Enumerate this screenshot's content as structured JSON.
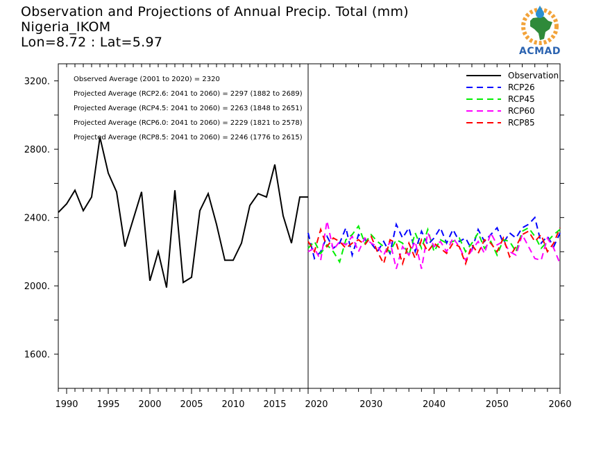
{
  "header": {
    "title": "Observation and Projections of Annual Precip. Total (mm)",
    "location": "Nigeria_IKOM",
    "coords": "Lon=8.72 : Lat=5.97"
  },
  "logo": {
    "text": "ACMAD"
  },
  "chart_data": {
    "type": "line",
    "ylim": [
      1400,
      3300
    ],
    "y_ticks": [
      1600,
      2000,
      2400,
      2800,
      3200
    ],
    "y_tick_labels": [
      "1600.",
      "2000.",
      "2400.",
      "2800.",
      "3200."
    ],
    "x_ticks_left": [
      1990,
      1995,
      2000,
      2005,
      2010,
      2015,
      2020
    ],
    "x_ticks_right": [
      2020,
      2030,
      2040,
      2050,
      2060
    ],
    "annotations": [
      "Observed Average (2001 to 2020) = 2320",
      "Projected Average (RCP2.6: 2041 to 2060) = 2297 (1882 to 2689)",
      "Projected Average (RCP4.5: 2041 to 2060) = 2263 (1848 to 2651)",
      "Projected Average (RCP6.0: 2041 to 2060) = 2229 (1821 to 2578)",
      "Projected Average (RCP8.5: 2041 to 2060) = 2246 (1776 to 2615)"
    ],
    "legend_position": "top-right",
    "observation": {
      "name": "Observation",
      "color": "#000000",
      "x": [
        1989,
        1990,
        1991,
        1992,
        1993,
        1994,
        1995,
        1996,
        1997,
        1998,
        1999,
        2000,
        2001,
        2002,
        2003,
        2004,
        2005,
        2006,
        2007,
        2008,
        2009,
        2010,
        2011,
        2012,
        2013,
        2014,
        2015,
        2016,
        2017,
        2018,
        2019
      ],
      "values": [
        2430,
        2480,
        2560,
        2440,
        2520,
        2870,
        2660,
        2550,
        2230,
        2390,
        2550,
        2030,
        2200,
        1990,
        2560,
        2020,
        2050,
        2440,
        2540,
        2360,
        2150,
        2150,
        2250,
        2470,
        2540,
        2520,
        2710,
        2410,
        2250,
        2520,
        2520
      ]
    },
    "projections": [
      {
        "name": "RCP26",
        "color": "#0000ff",
        "x": [
          2020,
          2021,
          2022,
          2023,
          2024,
          2025,
          2026,
          2027,
          2028,
          2029,
          2030,
          2031,
          2032,
          2033,
          2034,
          2035,
          2036,
          2037,
          2038,
          2039,
          2040,
          2041,
          2042,
          2043,
          2044,
          2045,
          2046,
          2047,
          2048,
          2049,
          2050,
          2051,
          2052,
          2053,
          2054,
          2055,
          2056,
          2057,
          2058,
          2059,
          2060
        ],
        "values": [
          2310,
          2160,
          2200,
          2290,
          2220,
          2250,
          2340,
          2180,
          2300,
          2270,
          2250,
          2200,
          2260,
          2190,
          2360,
          2280,
          2340,
          2200,
          2320,
          2240,
          2280,
          2340,
          2250,
          2330,
          2260,
          2280,
          2210,
          2330,
          2260,
          2300,
          2340,
          2250,
          2310,
          2280,
          2340,
          2360,
          2400,
          2250,
          2290,
          2230,
          2310
        ]
      },
      {
        "name": "RCP45",
        "color": "#00ee00",
        "x": [
          2020,
          2021,
          2022,
          2023,
          2024,
          2025,
          2026,
          2027,
          2028,
          2029,
          2030,
          2031,
          2032,
          2033,
          2034,
          2035,
          2036,
          2037,
          2038,
          2039,
          2040,
          2041,
          2042,
          2043,
          2044,
          2045,
          2046,
          2047,
          2048,
          2049,
          2050,
          2051,
          2052,
          2053,
          2054,
          2055,
          2056,
          2057,
          2058,
          2059,
          2060
        ],
        "values": [
          2220,
          2260,
          2190,
          2240,
          2200,
          2140,
          2270,
          2300,
          2350,
          2250,
          2300,
          2260,
          2230,
          2200,
          2270,
          2250,
          2180,
          2310,
          2220,
          2330,
          2200,
          2270,
          2250,
          2260,
          2280,
          2200,
          2250,
          2310,
          2220,
          2260,
          2180,
          2270,
          2260,
          2200,
          2320,
          2340,
          2290,
          2220,
          2260,
          2300,
          2330
        ]
      },
      {
        "name": "RCP60",
        "color": "#ff00ff",
        "x": [
          2020,
          2021,
          2022,
          2023,
          2024,
          2025,
          2026,
          2027,
          2028,
          2029,
          2030,
          2031,
          2032,
          2033,
          2034,
          2035,
          2036,
          2037,
          2038,
          2039,
          2040,
          2041,
          2042,
          2043,
          2044,
          2045,
          2046,
          2047,
          2048,
          2049,
          2050,
          2051,
          2052,
          2053,
          2054,
          2055,
          2056,
          2057,
          2058,
          2059,
          2060
        ],
        "values": [
          2200,
          2220,
          2150,
          2380,
          2210,
          2260,
          2240,
          2290,
          2200,
          2280,
          2250,
          2230,
          2180,
          2260,
          2100,
          2230,
          2180,
          2260,
          2100,
          2310,
          2230,
          2260,
          2200,
          2280,
          2230,
          2150,
          2210,
          2260,
          2190,
          2310,
          2240,
          2260,
          2200,
          2180,
          2300,
          2230,
          2160,
          2150,
          2280,
          2220,
          2130
        ]
      },
      {
        "name": "RCP85",
        "color": "#ff0000",
        "x": [
          2020,
          2021,
          2022,
          2023,
          2024,
          2025,
          2026,
          2027,
          2028,
          2029,
          2030,
          2031,
          2032,
          2033,
          2034,
          2035,
          2036,
          2037,
          2038,
          2039,
          2040,
          2041,
          2042,
          2043,
          2044,
          2045,
          2046,
          2047,
          2048,
          2049,
          2050,
          2051,
          2052,
          2053,
          2054,
          2055,
          2056,
          2057,
          2058,
          2059,
          2060
        ],
        "values": [
          2260,
          2200,
          2330,
          2230,
          2280,
          2260,
          2220,
          2250,
          2270,
          2240,
          2290,
          2200,
          2130,
          2270,
          2250,
          2130,
          2250,
          2160,
          2270,
          2200,
          2250,
          2220,
          2190,
          2250,
          2230,
          2130,
          2240,
          2190,
          2270,
          2250,
          2200,
          2280,
          2170,
          2230,
          2300,
          2320,
          2260,
          2300,
          2200,
          2250,
          2340
        ]
      }
    ]
  }
}
